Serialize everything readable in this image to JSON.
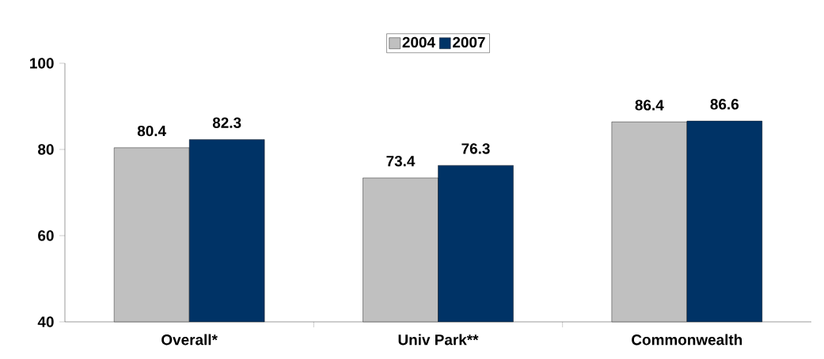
{
  "chart_data": {
    "type": "bar",
    "categories": [
      "Overall*",
      "Univ Park**",
      "Commonwealth"
    ],
    "series": [
      {
        "name": "2004",
        "color": "#c0c0c0",
        "values": [
          80.4,
          73.4,
          86.4
        ]
      },
      {
        "name": "2007",
        "color": "#003366",
        "values": [
          82.3,
          76.3,
          86.6
        ]
      }
    ],
    "ylim": [
      40,
      100
    ],
    "yticks": [
      40,
      60,
      80,
      100
    ],
    "data_labels": true,
    "legend": "top",
    "grid": false
  }
}
